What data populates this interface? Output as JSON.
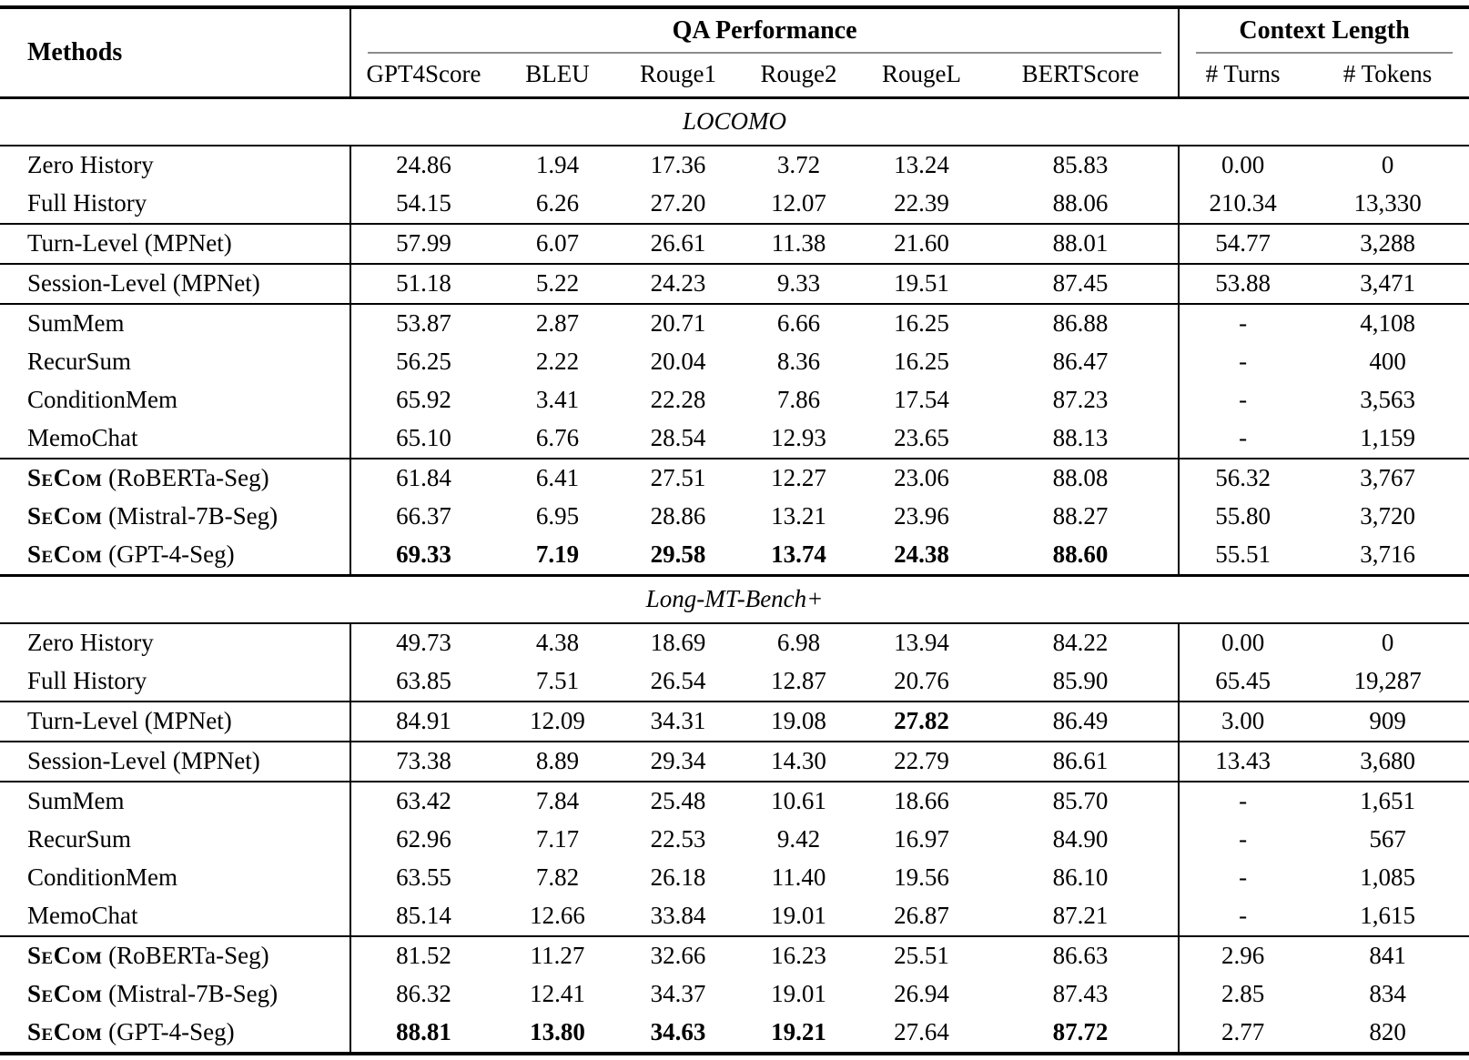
{
  "table": {
    "methods_label": "Methods",
    "qa_group_label": "QA Performance",
    "context_group_label": "Context Length",
    "columns": [
      "GPT4Score",
      "BLEU",
      "Rouge1",
      "Rouge2",
      "RougeL",
      "BERTScore",
      "# Turns",
      "# Tokens"
    ],
    "rule_color": "#8c8c8c",
    "sections": [
      {
        "title": "LOCOMO",
        "groups": [
          {
            "rows": [
              {
                "method": "Zero History",
                "secom": false,
                "values": [
                  "24.86",
                  "1.94",
                  "17.36",
                  "3.72",
                  "13.24",
                  "85.83",
                  "0.00",
                  "0"
                ],
                "bold": []
              },
              {
                "method": "Full History",
                "secom": false,
                "values": [
                  "54.15",
                  "6.26",
                  "27.20",
                  "12.07",
                  "22.39",
                  "88.06",
                  "210.34",
                  "13,330"
                ],
                "bold": []
              }
            ]
          },
          {
            "rows": [
              {
                "method": "Turn-Level (MPNet)",
                "secom": false,
                "values": [
                  "57.99",
                  "6.07",
                  "26.61",
                  "11.38",
                  "21.60",
                  "88.01",
                  "54.77",
                  "3,288"
                ],
                "bold": []
              }
            ]
          },
          {
            "rows": [
              {
                "method": "Session-Level (MPNet)",
                "secom": false,
                "values": [
                  "51.18",
                  "5.22",
                  "24.23",
                  "9.33",
                  "19.51",
                  "87.45",
                  "53.88",
                  "3,471"
                ],
                "bold": []
              }
            ]
          },
          {
            "rows": [
              {
                "method": "SumMem",
                "secom": false,
                "values": [
                  "53.87",
                  "2.87",
                  "20.71",
                  "6.66",
                  "16.25",
                  "86.88",
                  "-",
                  "4,108"
                ],
                "bold": []
              },
              {
                "method": "RecurSum",
                "secom": false,
                "values": [
                  "56.25",
                  "2.22",
                  "20.04",
                  "8.36",
                  "16.25",
                  "86.47",
                  "-",
                  "400"
                ],
                "bold": []
              },
              {
                "method": "ConditionMem",
                "secom": false,
                "values": [
                  "65.92",
                  "3.41",
                  "22.28",
                  "7.86",
                  "17.54",
                  "87.23",
                  "-",
                  "3,563"
                ],
                "bold": []
              },
              {
                "method": "MemoChat",
                "secom": false,
                "values": [
                  "65.10",
                  "6.76",
                  "28.54",
                  "12.93",
                  "23.65",
                  "88.13",
                  "-",
                  "1,159"
                ],
                "bold": []
              }
            ]
          },
          {
            "rows": [
              {
                "method": "SeCom (RoBERTa-Seg)",
                "secom": true,
                "values": [
                  "61.84",
                  "6.41",
                  "27.51",
                  "12.27",
                  "23.06",
                  "88.08",
                  "56.32",
                  "3,767"
                ],
                "bold": []
              },
              {
                "method": "SeCom (Mistral-7B-Seg)",
                "secom": true,
                "values": [
                  "66.37",
                  "6.95",
                  "28.86",
                  "13.21",
                  "23.96",
                  "88.27",
                  "55.80",
                  "3,720"
                ],
                "bold": []
              },
              {
                "method": "SeCom (GPT-4-Seg)",
                "secom": true,
                "values": [
                  "69.33",
                  "7.19",
                  "29.58",
                  "13.74",
                  "24.38",
                  "88.60",
                  "55.51",
                  "3,716"
                ],
                "bold": [
                  0,
                  1,
                  2,
                  3,
                  4,
                  5
                ]
              }
            ]
          }
        ]
      },
      {
        "title": "Long-MT-Bench+",
        "groups": [
          {
            "rows": [
              {
                "method": "Zero History",
                "secom": false,
                "values": [
                  "49.73",
                  "4.38",
                  "18.69",
                  "6.98",
                  "13.94",
                  "84.22",
                  "0.00",
                  "0"
                ],
                "bold": []
              },
              {
                "method": "Full History",
                "secom": false,
                "values": [
                  "63.85",
                  "7.51",
                  "26.54",
                  "12.87",
                  "20.76",
                  "85.90",
                  "65.45",
                  "19,287"
                ],
                "bold": []
              }
            ]
          },
          {
            "rows": [
              {
                "method": "Turn-Level (MPNet)",
                "secom": false,
                "values": [
                  "84.91",
                  "12.09",
                  "34.31",
                  "19.08",
                  "27.82",
                  "86.49",
                  "3.00",
                  "909"
                ],
                "bold": [
                  4
                ]
              }
            ]
          },
          {
            "rows": [
              {
                "method": "Session-Level (MPNet)",
                "secom": false,
                "values": [
                  "73.38",
                  "8.89",
                  "29.34",
                  "14.30",
                  "22.79",
                  "86.61",
                  "13.43",
                  "3,680"
                ],
                "bold": []
              }
            ]
          },
          {
            "rows": [
              {
                "method": "SumMem",
                "secom": false,
                "values": [
                  "63.42",
                  "7.84",
                  "25.48",
                  "10.61",
                  "18.66",
                  "85.70",
                  "-",
                  "1,651"
                ],
                "bold": []
              },
              {
                "method": "RecurSum",
                "secom": false,
                "values": [
                  "62.96",
                  "7.17",
                  "22.53",
                  "9.42",
                  "16.97",
                  "84.90",
                  "-",
                  "567"
                ],
                "bold": []
              },
              {
                "method": "ConditionMem",
                "secom": false,
                "values": [
                  "63.55",
                  "7.82",
                  "26.18",
                  "11.40",
                  "19.56",
                  "86.10",
                  "-",
                  "1,085"
                ],
                "bold": []
              },
              {
                "method": "MemoChat",
                "secom": false,
                "values": [
                  "85.14",
                  "12.66",
                  "33.84",
                  "19.01",
                  "26.87",
                  "87.21",
                  "-",
                  "1,615"
                ],
                "bold": []
              }
            ]
          },
          {
            "rows": [
              {
                "method": "SeCom (RoBERTa-Seg)",
                "secom": true,
                "values": [
                  "81.52",
                  "11.27",
                  "32.66",
                  "16.23",
                  "25.51",
                  "86.63",
                  "2.96",
                  "841"
                ],
                "bold": []
              },
              {
                "method": "SeCom (Mistral-7B-Seg)",
                "secom": true,
                "values": [
                  "86.32",
                  "12.41",
                  "34.37",
                  "19.01",
                  "26.94",
                  "87.43",
                  "2.85",
                  "834"
                ],
                "bold": []
              },
              {
                "method": "SeCom (GPT-4-Seg)",
                "secom": true,
                "values": [
                  "88.81",
                  "13.80",
                  "34.63",
                  "19.21",
                  "27.64",
                  "87.72",
                  "2.77",
                  "820"
                ],
                "bold": [
                  0,
                  1,
                  2,
                  3,
                  5
                ]
              }
            ]
          }
        ]
      }
    ]
  }
}
